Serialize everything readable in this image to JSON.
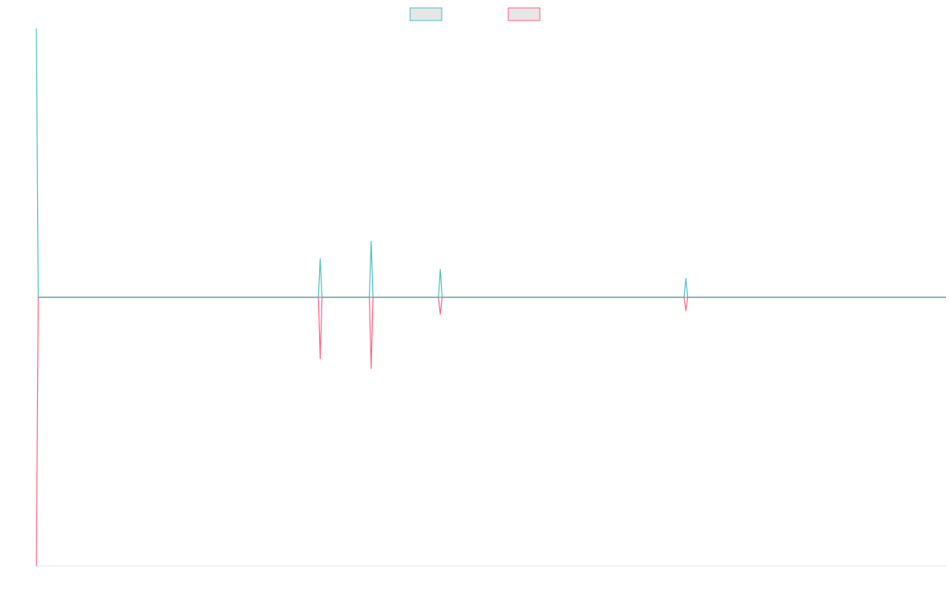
{
  "chart_data": {
    "type": "line",
    "title": "",
    "xlabel": "",
    "ylabel": "",
    "grid": false,
    "legend": {
      "position": "top-center",
      "swatch_fill": "#e6e6e6"
    },
    "x": [
      0,
      0.2,
      31,
      31.2,
      31.4,
      36.6,
      36.8,
      37,
      44.2,
      44.4,
      44.6,
      71.2,
      71.4,
      71.6,
      100
    ],
    "xlim": [
      0,
      100
    ],
    "ylim": [
      -1,
      1
    ],
    "baseline": 0,
    "series": [
      {
        "color": "#4bc0c0",
        "values": [
          1.0,
          0,
          0,
          0.144,
          0,
          0,
          0.208,
          0,
          0,
          0.104,
          0,
          0,
          0.07,
          0,
          0
        ]
      },
      {
        "color": "#ff6384",
        "values": [
          -1.0,
          0,
          0,
          -0.229,
          0,
          0,
          -0.265,
          0,
          0,
          -0.063,
          0,
          0,
          -0.05,
          0,
          0
        ]
      }
    ]
  }
}
